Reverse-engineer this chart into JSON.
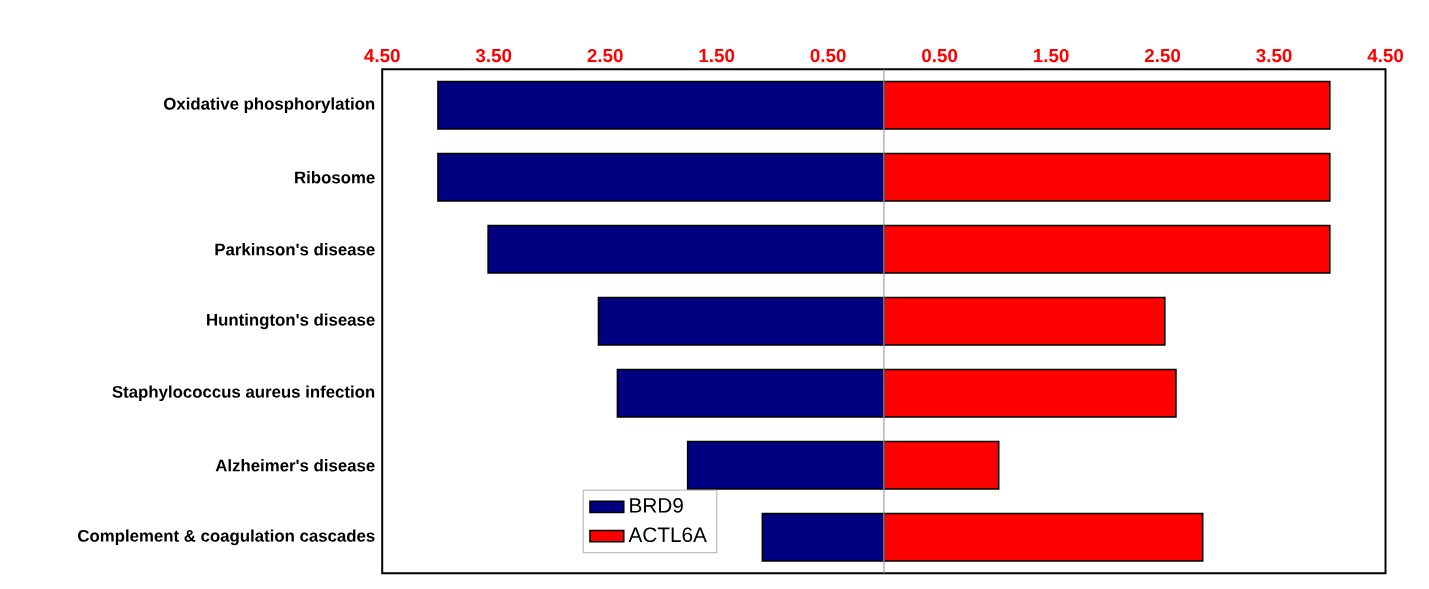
{
  "chart_data": {
    "type": "bar",
    "orientation": "horizontal",
    "categories": [
      "Oxidative phosphorylation",
      "Ribosome",
      "Parkinson's disease",
      "Huntington's disease",
      "Staphylococcus aureus infection",
      "Alzheimer's disease",
      "Complement & coagulation cascades"
    ],
    "series": [
      {
        "name": "BRD9",
        "color": "#000080",
        "values": [
          -4.0,
          -4.0,
          -3.55,
          -2.56,
          -2.39,
          -1.76,
          -1.09
        ]
      },
      {
        "name": "ACTL6A",
        "color": "#ff0000",
        "values": [
          4.0,
          4.0,
          4.0,
          2.52,
          2.62,
          1.03,
          2.86
        ]
      }
    ],
    "xlim": [
      -4.5,
      4.5
    ],
    "xticks": [
      {
        "value": -4.5,
        "label": "4.50"
      },
      {
        "value": -3.5,
        "label": "3.50"
      },
      {
        "value": -2.5,
        "label": "2.50"
      },
      {
        "value": -1.5,
        "label": "1.50"
      },
      {
        "value": -0.5,
        "label": "0.50"
      },
      {
        "value": 0.5,
        "label": "0.50"
      },
      {
        "value": 1.5,
        "label": "1.50"
      },
      {
        "value": 2.5,
        "label": "2.50"
      },
      {
        "value": 3.5,
        "label": "3.50"
      },
      {
        "value": 4.5,
        "label": "4.50"
      }
    ],
    "ref_lines": [
      {
        "axis": "x",
        "value": 0,
        "color": "#a0a0a0"
      }
    ],
    "grid": false,
    "stacked": true,
    "legend": "bottom left"
  }
}
